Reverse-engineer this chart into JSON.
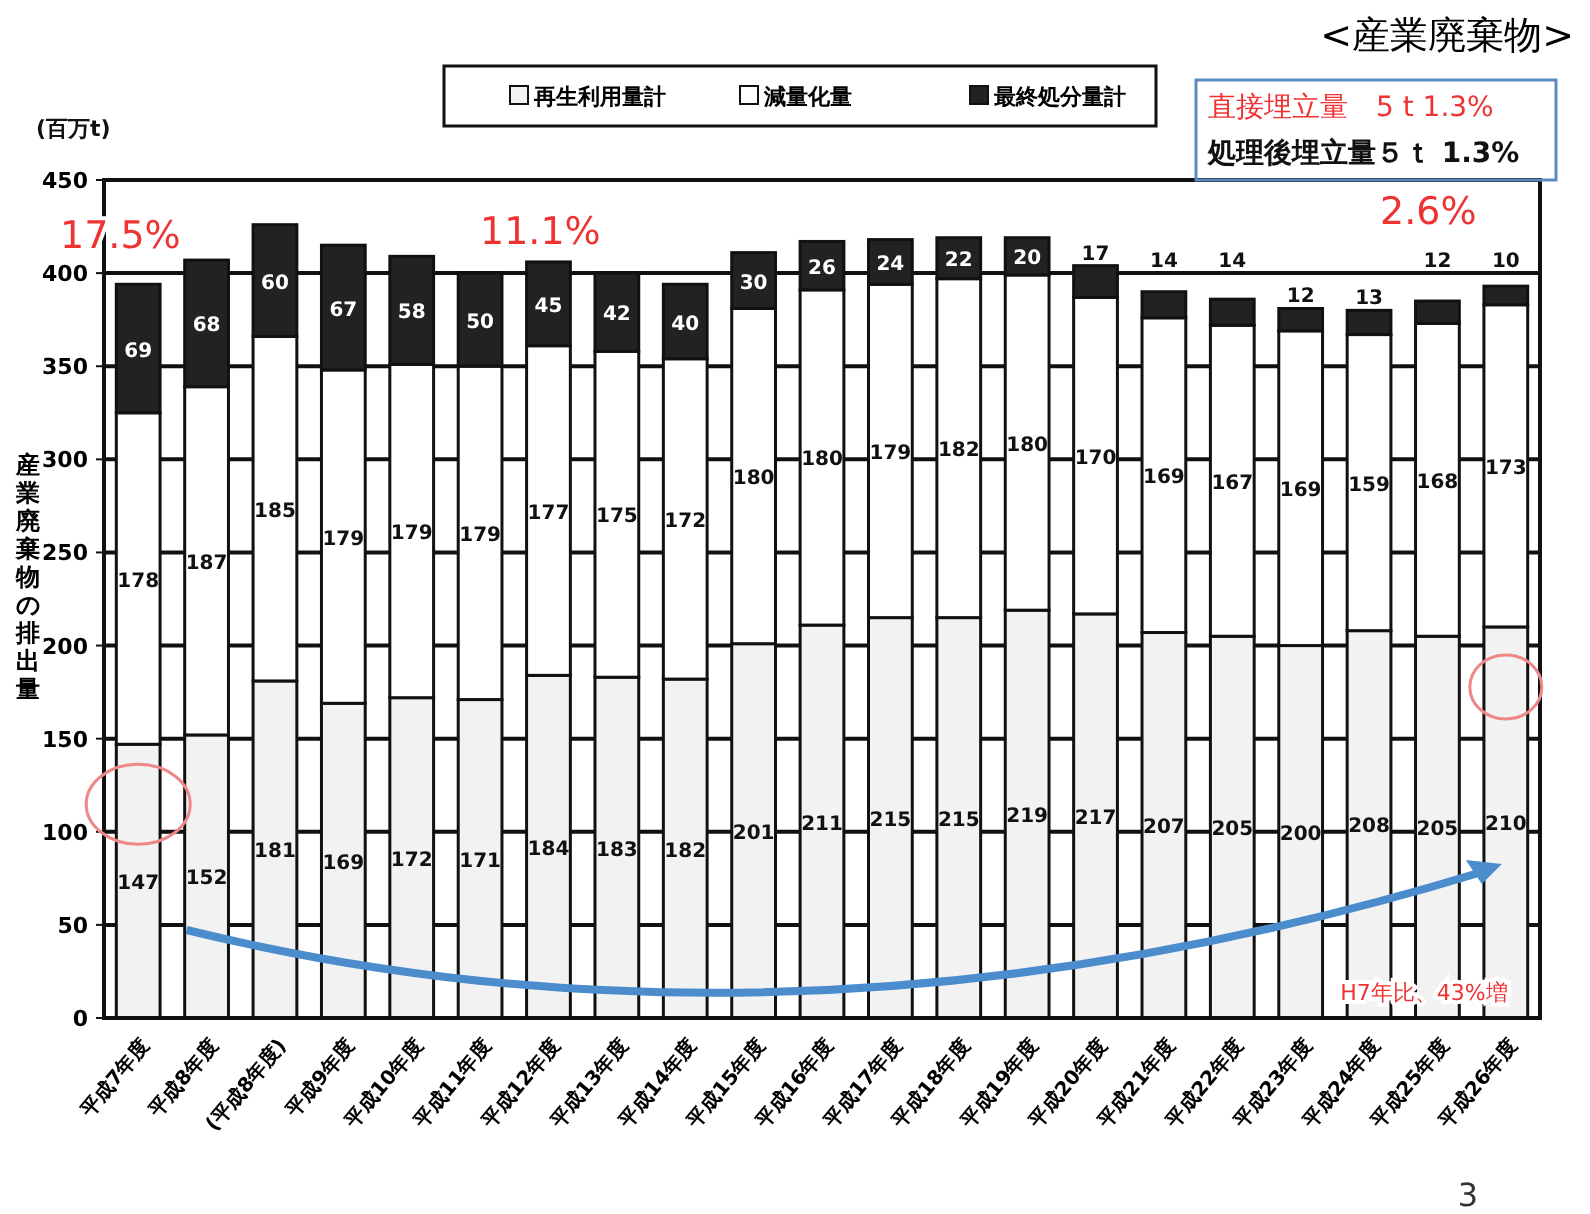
{
  "chart_data": {
    "type": "bar",
    "stacked": true,
    "title": "<産業廃棄物>",
    "ylabel": "産業廃棄物の排出量",
    "categories": [
      "平成7年度",
      "平成8年度",
      "(平成8年度)",
      "平成9年度",
      "平成10年度",
      "平成11年度",
      "平成12年度",
      "平成13年度",
      "平成14年度",
      "平成15年度",
      "平成16年度",
      "平成17年度",
      "平成18年度",
      "平成19年度",
      "平成20年度",
      "平成21年度",
      "平成22年度",
      "平成23年度",
      "平成24年度",
      "平成25年度",
      "平成26年度"
    ],
    "series": [
      {
        "name": "再生利用量計",
        "color": "#f2f2f2",
        "values": [
          147,
          152,
          181,
          169,
          172,
          171,
          184,
          183,
          182,
          201,
          211,
          215,
          215,
          219,
          217,
          207,
          205,
          200,
          208,
          205,
          210
        ]
      },
      {
        "name": "減量化量",
        "color": "#ffffff",
        "values": [
          178,
          187,
          185,
          179,
          179,
          179,
          177,
          175,
          172,
          180,
          180,
          179,
          182,
          180,
          170,
          169,
          167,
          169,
          159,
          168,
          173
        ]
      },
      {
        "name": "最終処分量計",
        "color": "#222222",
        "values": [
          69,
          68,
          60,
          67,
          58,
          50,
          45,
          42,
          40,
          30,
          26,
          24,
          22,
          20,
          17,
          14,
          14,
          12,
          13,
          12,
          10
        ]
      }
    ],
    "ylim": [
      0,
      450
    ],
    "yticks": [
      0,
      50,
      100,
      150,
      200,
      250,
      300,
      350,
      400,
      450
    ],
    "data_labels": true,
    "legend": "top",
    "grid": "y",
    "annotations": [
      "(百万t)",
      "17.5%",
      "11.1%",
      "2.6%",
      "直接埋立量　5 t 1.3%",
      "処理後埋立量５ｔ 1.3%",
      "H7年比、43%増",
      "3"
    ]
  }
}
